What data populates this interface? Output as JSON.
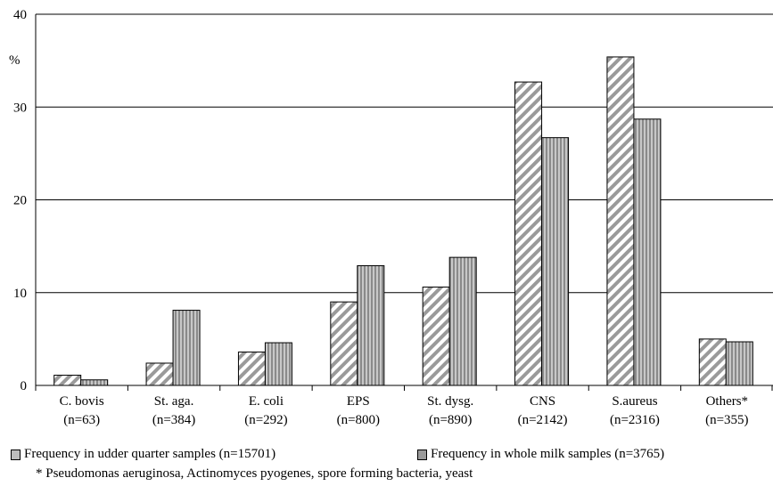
{
  "chart_data": {
    "type": "bar",
    "ylabel": "%",
    "ylim": [
      0,
      40
    ],
    "yticks": [
      0,
      10,
      20,
      30,
      40
    ],
    "grid": true,
    "legend_position": "bottom",
    "categories": [
      {
        "name": "C. bovis",
        "n": "(n=63)"
      },
      {
        "name": "St. aga.",
        "n": "(n=384)"
      },
      {
        "name": "E. coli",
        "n": "(n=292)"
      },
      {
        "name": "EPS",
        "n": "(n=800)"
      },
      {
        "name": "St. dysg.",
        "n": "(n=890)"
      },
      {
        "name": "CNS",
        "n": "(n=2142)"
      },
      {
        "name": "S.aureus",
        "n": "(n=2316)"
      },
      {
        "name": "Others*",
        "n": "(n=355)"
      }
    ],
    "series": [
      {
        "name": "Frequency in udder quarter samples (n=15701)",
        "pattern": "diagonal-stripes",
        "values": [
          1.1,
          2.4,
          3.6,
          9.0,
          10.6,
          32.7,
          35.4,
          5.0
        ]
      },
      {
        "name": "Frequency in whole milk samples (n=3765)",
        "pattern": "vertical-stripes",
        "values": [
          0.6,
          8.1,
          4.6,
          12.9,
          13.8,
          26.7,
          28.7,
          4.7
        ]
      }
    ],
    "footnote": "* Pseudomonas aeruginosa, Actinomyces pyogenes, spore forming bacteria, yeast"
  }
}
